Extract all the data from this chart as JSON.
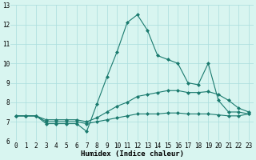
{
  "xlabel": "Humidex (Indice chaleur)",
  "x": [
    0,
    1,
    2,
    3,
    4,
    5,
    6,
    7,
    8,
    9,
    10,
    11,
    12,
    13,
    14,
    15,
    16,
    17,
    18,
    19,
    20,
    21,
    22,
    23
  ],
  "line1": [
    7.3,
    7.3,
    7.3,
    6.9,
    6.9,
    6.9,
    6.9,
    6.5,
    7.9,
    9.3,
    10.6,
    12.1,
    12.5,
    11.7,
    10.4,
    10.2,
    10.0,
    9.0,
    8.9,
    10.0,
    8.1,
    7.5,
    7.5,
    7.4
  ],
  "line2": [
    7.3,
    7.3,
    7.3,
    7.1,
    7.1,
    7.1,
    7.1,
    7.0,
    7.2,
    7.5,
    7.8,
    8.0,
    8.3,
    8.4,
    8.5,
    8.6,
    8.6,
    8.5,
    8.5,
    8.55,
    8.4,
    8.1,
    7.7,
    7.5
  ],
  "line3": [
    7.3,
    7.3,
    7.3,
    7.0,
    7.0,
    7.0,
    7.0,
    6.9,
    7.0,
    7.1,
    7.2,
    7.3,
    7.4,
    7.4,
    7.4,
    7.45,
    7.45,
    7.4,
    7.4,
    7.4,
    7.35,
    7.3,
    7.3,
    7.4
  ],
  "line_color": "#1a7a6e",
  "bg_color": "#d8f5f0",
  "grid_color": "#aadddd",
  "ylim": [
    6,
    13
  ],
  "yticks": [
    6,
    7,
    8,
    9,
    10,
    11,
    12,
    13
  ],
  "xticks": [
    0,
    1,
    2,
    3,
    4,
    5,
    6,
    7,
    8,
    9,
    10,
    11,
    12,
    13,
    14,
    15,
    16,
    17,
    18,
    19,
    20,
    21,
    22,
    23
  ],
  "xlabel_fontsize": 6.5,
  "tick_fontsize": 5.5,
  "linewidth": 0.8,
  "marker": "D",
  "markersize": 2.0
}
